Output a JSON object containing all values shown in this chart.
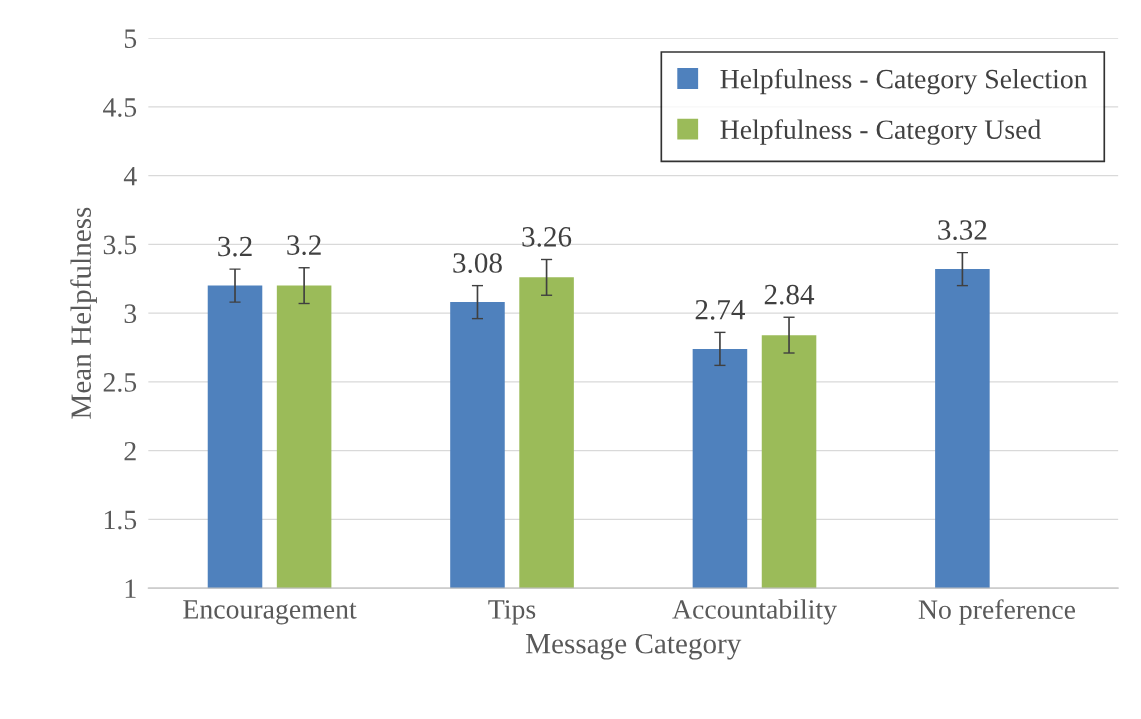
{
  "chart_data": {
    "type": "bar",
    "xlabel": "Message Category",
    "ylabel": "Mean Helpfulness",
    "categories": [
      "Encouragement",
      "Tips",
      "Accountability",
      "No preference"
    ],
    "series": [
      {
        "name": "Helpfulness - Category Selection",
        "color": "#4f81bd",
        "values": [
          3.2,
          3.08,
          2.74,
          3.32
        ],
        "errors": [
          0.12,
          0.12,
          0.12,
          0.12
        ]
      },
      {
        "name": "Helpfulness - Category Used",
        "color": "#9bbb59",
        "values": [
          3.2,
          3.26,
          2.84,
          null
        ],
        "errors": [
          0.13,
          0.13,
          0.13,
          null
        ]
      }
    ],
    "ylim": [
      1,
      5
    ],
    "yticks": [
      1,
      1.5,
      2,
      2.5,
      3,
      3.5,
      4,
      4.5,
      5
    ],
    "grid": "y",
    "legend": "top right",
    "data_labels": true
  }
}
